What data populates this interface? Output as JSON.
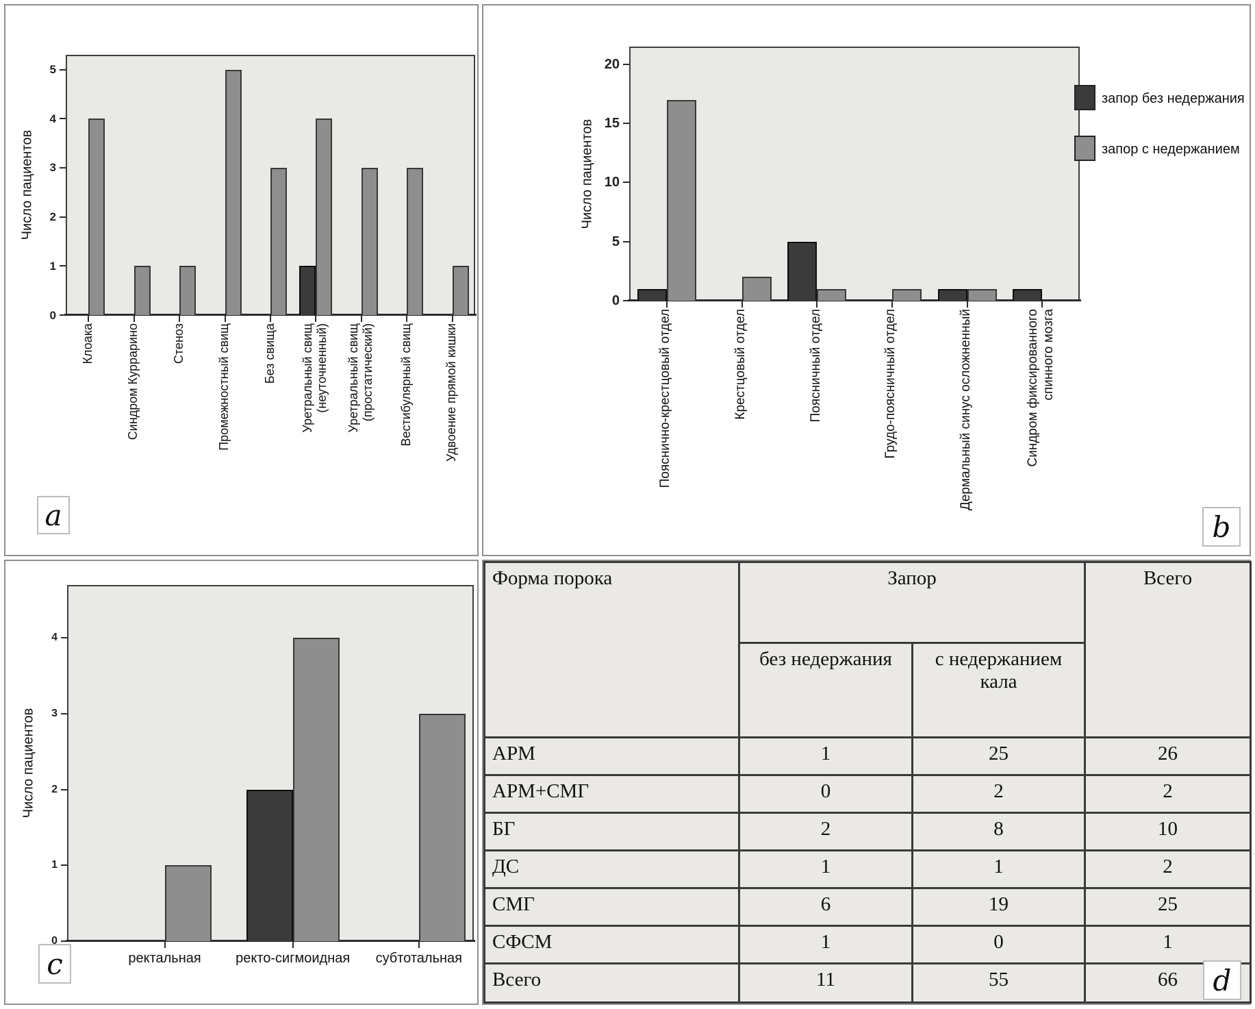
{
  "panel_letters": {
    "a": "a",
    "b": "b",
    "c": "c",
    "d": "d"
  },
  "chart_data": [
    {
      "panel": "a",
      "type": "bar",
      "title": "",
      "ylabel": "Число пациентов",
      "yticks": [
        0,
        1,
        2,
        3,
        4,
        5
      ],
      "ylim": [
        0,
        5.3
      ],
      "grid": false,
      "legend_visible": false,
      "categories": [
        [
          "Клоака"
        ],
        [
          "Синдром Куррарино"
        ],
        [
          "Стеноз"
        ],
        [
          "Промежностный свищ"
        ],
        [
          "Без свища"
        ],
        [
          "Уретральный свищ",
          "(неуточненный)"
        ],
        [
          "Уретральный свищ",
          "(простатический)"
        ],
        [
          "Вестибулярный свищ"
        ],
        [
          "Удвоение прямой кишки"
        ]
      ],
      "series": [
        {
          "name": "запор без недержания",
          "color": "#3b3b3b",
          "values": [
            0,
            0,
            0,
            0,
            0,
            1,
            0,
            0,
            0
          ]
        },
        {
          "name": "запор с недержанием",
          "color": "#8e8e8e",
          "values": [
            4,
            1,
            1,
            5,
            3,
            4,
            3,
            3,
            1
          ]
        }
      ]
    },
    {
      "panel": "b",
      "type": "bar",
      "title": "",
      "ylabel": "Число пациентов",
      "yticks": [
        0,
        5,
        10,
        15,
        20
      ],
      "ylim": [
        0,
        21.5
      ],
      "grid": false,
      "legend_visible": true,
      "legend_position": "right",
      "legend": [
        "запор без недержания",
        "запор с недержанием"
      ],
      "categories": [
        [
          "Пояснично-крестцовый отдел"
        ],
        [
          "Крестцовый отдел"
        ],
        [
          "Поясничный отдел"
        ],
        [
          "Грудо-поясничный отдел"
        ],
        [
          "Дермальный синус осложненный"
        ],
        [
          "Синдром фиксированного",
          "спинного мозга"
        ]
      ],
      "series": [
        {
          "name": "запор без недержания",
          "color": "#3b3b3b",
          "values": [
            1,
            0,
            5,
            0,
            1,
            1
          ]
        },
        {
          "name": "запор с недержанием",
          "color": "#8e8e8e",
          "values": [
            17,
            2,
            1,
            1,
            1,
            0
          ]
        }
      ]
    },
    {
      "panel": "c",
      "type": "bar",
      "title": "",
      "ylabel": "Число пациентов",
      "yticks": [
        0,
        1,
        2,
        3,
        4
      ],
      "ylim": [
        0,
        4.7
      ],
      "grid": false,
      "legend_visible": false,
      "xlabel_orientation": "horizontal",
      "categories": [
        [
          "ректальная"
        ],
        [
          "ректо-сигмоидная"
        ],
        [
          "субтотальная"
        ]
      ],
      "series": [
        {
          "name": "запор без недержания",
          "color": "#3b3b3b",
          "values": [
            0,
            2,
            0
          ]
        },
        {
          "name": "запор с недержанием",
          "color": "#8e8e8e",
          "values": [
            1,
            4,
            3
          ]
        }
      ]
    },
    {
      "panel": "d",
      "type": "table",
      "header": {
        "col1": "Форма порока",
        "group": "Запор",
        "subs": [
          "без недержания",
          "с недержанием кала"
        ],
        "total": "Всего"
      },
      "rows": [
        [
          "АРМ",
          "1",
          "25",
          "26"
        ],
        [
          "АРМ+СМГ",
          "0",
          "2",
          "2"
        ],
        [
          "БГ",
          "2",
          "8",
          "10"
        ],
        [
          "ДС",
          "1",
          "1",
          "2"
        ],
        [
          "СМГ",
          "6",
          "19",
          "25"
        ],
        [
          "СФСМ",
          "1",
          "0",
          "1"
        ],
        [
          "Всего",
          "11",
          "55",
          "66"
        ]
      ]
    }
  ],
  "colors": {
    "bar_dark": "#3b3b3b",
    "bar_gray": "#8e8e8e",
    "plot_background": "#e9e9e6",
    "axis": "#2b2b2b",
    "table_background": "#eae9e6"
  }
}
